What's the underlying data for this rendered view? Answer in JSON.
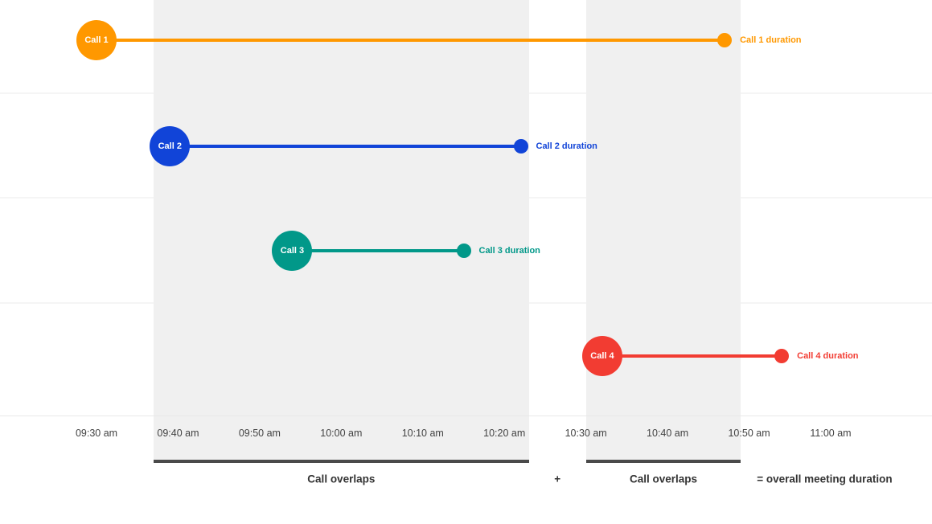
{
  "chart_data": {
    "type": "timeline",
    "title": "",
    "x_axis": {
      "tick_labels": [
        "09:30 am",
        "09:40 am",
        "09:50 am",
        "10:00 am",
        "10:10 am",
        "10:20 am",
        "10:30 am",
        "10:40 am",
        "10:50 am",
        "11:00 am"
      ],
      "tick_times": [
        "09:30",
        "09:40",
        "09:50",
        "10:00",
        "10:10",
        "10:20",
        "10:30",
        "10:40",
        "10:50",
        "11:00"
      ],
      "range_minutes": [
        "09:30",
        "11:00"
      ],
      "grid": "horizontal-row-lines"
    },
    "calls": [
      {
        "label": "Call 1",
        "duration_label": "Call 1 duration",
        "color": "#ff9800",
        "start": "09:30",
        "end": "10:47"
      },
      {
        "label": "Call 2",
        "duration_label": "Call 2 duration",
        "color": "#1144d8",
        "start": "09:39",
        "end": "10:22"
      },
      {
        "label": "Call 3",
        "duration_label": "Call 3 duration",
        "color": "#019889",
        "start": "09:54",
        "end": "10:15"
      },
      {
        "label": "Call 4",
        "duration_label": "Call 4 duration",
        "color": "#f23c32",
        "start": "10:32",
        "end": "10:54"
      }
    ],
    "overlap_bands": [
      {
        "start": "09:37",
        "end": "10:23"
      },
      {
        "start": "10:30",
        "end": "10:49"
      }
    ],
    "annotations": [
      {
        "text": "Call overlaps"
      },
      {
        "text": "+"
      },
      {
        "text": "Call overlaps"
      },
      {
        "text": "= overall meeting duration"
      }
    ],
    "colors": {
      "band": "#f0f0f0",
      "underline_bar": "#4a4a4a",
      "gridline": "#f5f5f5",
      "axis_line": "#e8e8e8",
      "tick_text": "#424242",
      "annotation_text": "#333333"
    }
  }
}
